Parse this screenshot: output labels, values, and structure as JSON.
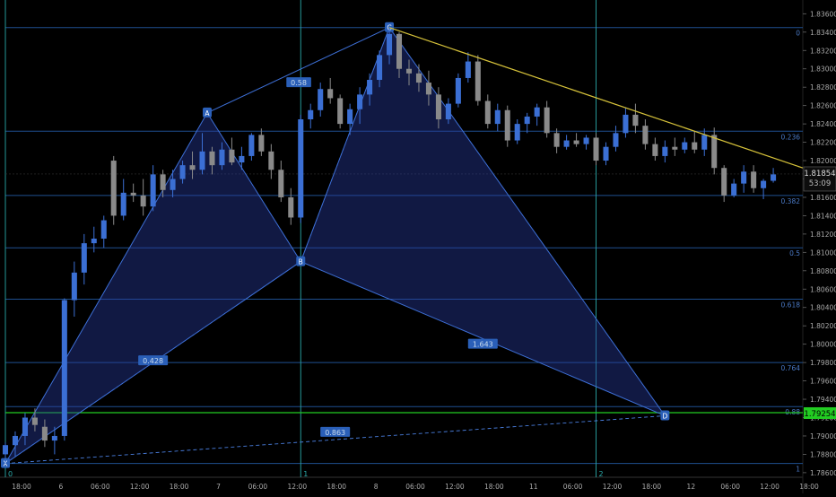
{
  "chart_data": {
    "type": "candlestick",
    "y_axis": {
      "ticks": [
        "1.83600",
        "1.83400",
        "1.83200",
        "1.83000",
        "1.82800",
        "1.82600",
        "1.82400",
        "1.82200",
        "1.82000",
        "1.81800",
        "1.81600",
        "1.81400",
        "1.81200",
        "1.81000",
        "1.80800",
        "1.80600",
        "1.80400",
        "1.80200",
        "1.80000",
        "1.79800",
        "1.79600",
        "1.79400",
        "1.79200",
        "1.79000",
        "1.78800",
        "1.78600"
      ],
      "range": [
        1.7855,
        1.8375
      ]
    },
    "x_axis": {
      "ticks": [
        "18:00",
        "6",
        "06:00",
        "12:00",
        "18:00",
        "7",
        "06:00",
        "12:00",
        "18:00",
        "8",
        "06:00",
        "12:00",
        "18:00",
        "11",
        "06:00",
        "12:00",
        "18:00",
        "12",
        "06:00",
        "12:00",
        "18:00"
      ],
      "range": [
        0,
        81
      ]
    },
    "price_labels": {
      "current": {
        "value": 1.81854,
        "text": "1.81854",
        "countdown": "53:09"
      },
      "target": {
        "value": 1.79254,
        "text": "1.79254"
      }
    },
    "fib_levels": [
      {
        "ratio": "0",
        "price": 1.8345
      },
      {
        "ratio": "0.236",
        "price": 1.8232
      },
      {
        "ratio": "0.382",
        "price": 1.8162
      },
      {
        "ratio": "0.5",
        "price": 1.8105
      },
      {
        "ratio": "0.618",
        "price": 1.8049
      },
      {
        "ratio": "0.764",
        "price": 1.798
      },
      {
        "ratio": "0.88",
        "price": 1.7932
      },
      {
        "ratio": "1",
        "price": 1.787
      }
    ],
    "time_markers": [
      {
        "label": "0",
        "x": 0
      },
      {
        "label": "1",
        "x": 30
      },
      {
        "label": "2",
        "x": 60
      }
    ],
    "pattern": {
      "points": [
        {
          "label": "X",
          "x": 0,
          "y": 1.787
        },
        {
          "label": "A",
          "x": 20.5,
          "y": 1.8252
        },
        {
          "label": "B",
          "x": 30,
          "y": 1.809
        },
        {
          "label": "C",
          "x": 39,
          "y": 1.8345
        },
        {
          "label": "D",
          "x": 67,
          "y": 1.7922
        }
      ],
      "ratios": [
        {
          "text": "0.58",
          "x": 29.8,
          "y": 1.8285
        },
        {
          "text": "0.428",
          "x": 15,
          "y": 1.7982
        },
        {
          "text": "1.643",
          "x": 48.5,
          "y": 1.8
        },
        {
          "text": "0.863",
          "x": 33.5,
          "y": 1.7904
        }
      ]
    },
    "trendline": {
      "from": {
        "x": 39,
        "y": 1.8345
      },
      "to": {
        "x": 81,
        "y": 1.8192
      }
    },
    "candles": [
      [
        0,
        1.788,
        1.7893,
        1.787,
        1.789
      ],
      [
        1,
        1.789,
        1.7905,
        1.7878,
        1.79
      ],
      [
        2,
        1.79,
        1.7925,
        1.789,
        1.792
      ],
      [
        3,
        1.792,
        1.793,
        1.7905,
        1.7912
      ],
      [
        4,
        1.791,
        1.7918,
        1.7888,
        1.7895
      ],
      [
        5,
        1.7895,
        1.791,
        1.788,
        1.79
      ],
      [
        6,
        1.79,
        1.805,
        1.7895,
        1.8048
      ],
      [
        7,
        1.8048,
        1.809,
        1.803,
        1.8078
      ],
      [
        8,
        1.8078,
        1.812,
        1.8065,
        1.811
      ],
      [
        9,
        1.811,
        1.8128,
        1.81,
        1.8115
      ],
      [
        10,
        1.8115,
        1.814,
        1.8105,
        1.8135
      ],
      [
        11,
        1.82,
        1.8205,
        1.813,
        1.814
      ],
      [
        12,
        1.814,
        1.818,
        1.8135,
        1.8165
      ],
      [
        13,
        1.8165,
        1.8175,
        1.8155,
        1.8162
      ],
      [
        14,
        1.8162,
        1.818,
        1.814,
        1.815
      ],
      [
        15,
        1.815,
        1.8195,
        1.8145,
        1.8185
      ],
      [
        16,
        1.8185,
        1.819,
        1.816,
        1.8168
      ],
      [
        17,
        1.8168,
        1.819,
        1.816,
        1.818
      ],
      [
        18,
        1.818,
        1.82,
        1.8175,
        1.8195
      ],
      [
        19,
        1.8195,
        1.821,
        1.818,
        1.819
      ],
      [
        20,
        1.819,
        1.823,
        1.8185,
        1.821
      ],
      [
        21,
        1.821,
        1.8215,
        1.8185,
        1.8195
      ],
      [
        22,
        1.8195,
        1.822,
        1.819,
        1.8212
      ],
      [
        23,
        1.8212,
        1.8225,
        1.8195,
        1.8198
      ],
      [
        24,
        1.8198,
        1.8215,
        1.819,
        1.8205
      ],
      [
        25,
        1.8205,
        1.823,
        1.82,
        1.8228
      ],
      [
        26,
        1.8228,
        1.8235,
        1.8205,
        1.821
      ],
      [
        27,
        1.821,
        1.8218,
        1.818,
        1.819
      ],
      [
        28,
        1.819,
        1.82,
        1.8155,
        1.816
      ],
      [
        29,
        1.816,
        1.817,
        1.813,
        1.8138
      ],
      [
        30,
        1.8138,
        1.825,
        1.8132,
        1.8245
      ],
      [
        31,
        1.8245,
        1.8262,
        1.8235,
        1.8255
      ],
      [
        32,
        1.8255,
        1.8285,
        1.8248,
        1.8278
      ],
      [
        33,
        1.8278,
        1.829,
        1.8262,
        1.8268
      ],
      [
        34,
        1.8268,
        1.8272,
        1.8235,
        1.824
      ],
      [
        35,
        1.824,
        1.8262,
        1.8228,
        1.8256
      ],
      [
        36,
        1.8256,
        1.828,
        1.824,
        1.8272
      ],
      [
        37,
        1.8272,
        1.8295,
        1.826,
        1.8288
      ],
      [
        38,
        1.8288,
        1.832,
        1.828,
        1.8315
      ],
      [
        39,
        1.8315,
        1.8345,
        1.8305,
        1.8338
      ],
      [
        40,
        1.8338,
        1.834,
        1.829,
        1.83
      ],
      [
        41,
        1.83,
        1.831,
        1.8282,
        1.8295
      ],
      [
        42,
        1.8295,
        1.8305,
        1.8275,
        1.8285
      ],
      [
        43,
        1.8285,
        1.8298,
        1.826,
        1.8272
      ],
      [
        44,
        1.8272,
        1.828,
        1.8235,
        1.8245
      ],
      [
        45,
        1.8245,
        1.8268,
        1.824,
        1.8262
      ],
      [
        46,
        1.8262,
        1.8295,
        1.8258,
        1.829
      ],
      [
        47,
        1.829,
        1.8318,
        1.8285,
        1.8308
      ],
      [
        48,
        1.8308,
        1.8315,
        1.826,
        1.8265
      ],
      [
        49,
        1.8265,
        1.8272,
        1.8235,
        1.824
      ],
      [
        50,
        1.824,
        1.8262,
        1.8232,
        1.8255
      ],
      [
        51,
        1.8255,
        1.826,
        1.8215,
        1.8222
      ],
      [
        52,
        1.8222,
        1.8245,
        1.8218,
        1.824
      ],
      [
        53,
        1.824,
        1.8252,
        1.823,
        1.8248
      ],
      [
        54,
        1.8248,
        1.8262,
        1.8238,
        1.8258
      ],
      [
        55,
        1.8258,
        1.8265,
        1.8225,
        1.823
      ],
      [
        56,
        1.823,
        1.8235,
        1.8208,
        1.8215
      ],
      [
        57,
        1.8215,
        1.8228,
        1.8212,
        1.8222
      ],
      [
        58,
        1.8222,
        1.823,
        1.8215,
        1.8218
      ],
      [
        59,
        1.8218,
        1.8228,
        1.8212,
        1.8225
      ],
      [
        60,
        1.8225,
        1.823,
        1.8195,
        1.82
      ],
      [
        61,
        1.82,
        1.822,
        1.8195,
        1.8215
      ],
      [
        62,
        1.8215,
        1.8238,
        1.821,
        1.823
      ],
      [
        63,
        1.823,
        1.8258,
        1.8225,
        1.825
      ],
      [
        64,
        1.825,
        1.8262,
        1.823,
        1.8238
      ],
      [
        65,
        1.8238,
        1.8245,
        1.8212,
        1.8218
      ],
      [
        66,
        1.8218,
        1.8225,
        1.82,
        1.8205
      ],
      [
        67,
        1.8205,
        1.8222,
        1.8198,
        1.8215
      ],
      [
        68,
        1.8215,
        1.8225,
        1.8205,
        1.8212
      ],
      [
        69,
        1.8212,
        1.8225,
        1.8208,
        1.822
      ],
      [
        70,
        1.822,
        1.8232,
        1.8208,
        1.8212
      ],
      [
        71,
        1.8212,
        1.8235,
        1.8205,
        1.8228
      ],
      [
        72,
        1.8228,
        1.8236,
        1.8185,
        1.8192
      ],
      [
        73,
        1.8192,
        1.8195,
        1.8155,
        1.8162
      ],
      [
        74,
        1.8162,
        1.818,
        1.816,
        1.8175
      ],
      [
        75,
        1.8175,
        1.8195,
        1.8165,
        1.8188
      ],
      [
        76,
        1.8188,
        1.8195,
        1.8165,
        1.817
      ],
      [
        77,
        1.817,
        1.818,
        1.8158,
        1.8178
      ],
      [
        78,
        1.8178,
        1.8192,
        1.8176,
        1.8185
      ]
    ]
  }
}
